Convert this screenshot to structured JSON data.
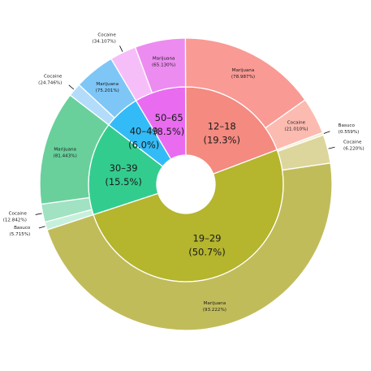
{
  "chart_data": {
    "type": "sunburst",
    "inner": [
      {
        "label": "12–18",
        "pct_label": "(19.3%)",
        "value": 19.3,
        "color": "#f48a80"
      },
      {
        "label": "19–29",
        "pct_label": "(50.7%)",
        "value": 50.7,
        "color": "#b5b52e"
      },
      {
        "label": "30–39",
        "pct_label": "(15.5%)",
        "value": 15.5,
        "color": "#33cc8f"
      },
      {
        "label": "40–49",
        "pct_label": "(6.0%)",
        "value": 6.0,
        "color": "#33bbf7"
      },
      {
        "label": "50–65",
        "pct_label": "(8.5%)",
        "value": 8.5,
        "color": "#e96cf0"
      }
    ],
    "outer": [
      {
        "parent": "12–18",
        "label": "Marijuana",
        "pct_label": "(78.987%)",
        "value": 78.987,
        "color": "#f99a94"
      },
      {
        "parent": "12–18",
        "label": "Cocaine",
        "pct_label": "(21.010%)",
        "value": 21.01,
        "color": "#fcbbb1"
      },
      {
        "parent": "19–29",
        "label": "Basuco",
        "pct_label": "(0.559%)",
        "value": 0.559,
        "color": "#eeeecc"
      },
      {
        "parent": "19–29",
        "label": "Cocaine",
        "pct_label": "(6.220%)",
        "value": 6.22,
        "color": "#dcd69c"
      },
      {
        "parent": "19–29",
        "label": "Marijuana",
        "pct_label": "(93.222%)",
        "value": 93.222,
        "color": "#c1bc5a"
      },
      {
        "parent": "30–39",
        "label": "Basuco",
        "pct_label": "(5.715%)",
        "value": 5.715,
        "color": "#c6f0dc"
      },
      {
        "parent": "30–39",
        "label": "Cocaine",
        "pct_label": "(12.842%)",
        "value": 12.842,
        "color": "#a0e2c2"
      },
      {
        "parent": "30–39",
        "label": "Marijuana",
        "pct_label": "(81.443%)",
        "value": 81.443,
        "color": "#69d09c"
      },
      {
        "parent": "40–49",
        "label": "Cocaine",
        "pct_label": "(24.746%)",
        "value": 24.746,
        "color": "#b2dcfa"
      },
      {
        "parent": "40–49",
        "label": "Marijuana",
        "pct_label": "(75.201%)",
        "value": 75.201,
        "color": "#7ec6f6"
      },
      {
        "parent": "50–65",
        "label": "Cocaine",
        "pct_label": "(34.107%)",
        "value": 34.107,
        "color": "#f6bef8"
      },
      {
        "parent": "50–65",
        "label": "Marijuana",
        "pct_label": "(65.130%)",
        "value": 65.13,
        "color": "#ec8cf0"
      }
    ]
  }
}
